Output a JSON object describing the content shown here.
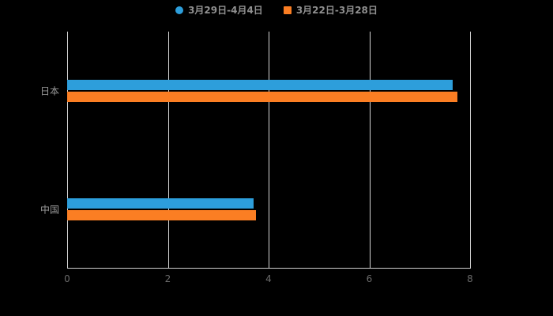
{
  "legend": {
    "items": [
      {
        "label": "3月29日-4月4日",
        "marker": "circle"
      },
      {
        "label": "3月22日-3月28日",
        "marker": "square"
      }
    ]
  },
  "chart_data": {
    "type": "bar",
    "orientation": "horizontal",
    "title": "",
    "xlabel": "",
    "ylabel": "",
    "categories": [
      "日本",
      "中国"
    ],
    "series": [
      {
        "name": "3月29日-4月4日",
        "color": "#2d9edb",
        "values": [
          7.65,
          3.7
        ]
      },
      {
        "name": "3月22日-3月28日",
        "color": "#fb7e23",
        "values": [
          7.75,
          3.75
        ]
      }
    ],
    "xlim": [
      0,
      8
    ],
    "xticks": [
      "0",
      "2",
      "4",
      "6",
      "8"
    ],
    "grid": true,
    "legend_position": "top"
  },
  "colors": {
    "background": "#000000",
    "grid": "#d6d6d6",
    "axis_line": "#cfcfcf",
    "tick_label": "#6b6b6b",
    "category_label": "#9a9a9a",
    "legend_text": "#8f8f8f",
    "series_blue": "#2d9edb",
    "series_orange": "#fb7e23"
  }
}
